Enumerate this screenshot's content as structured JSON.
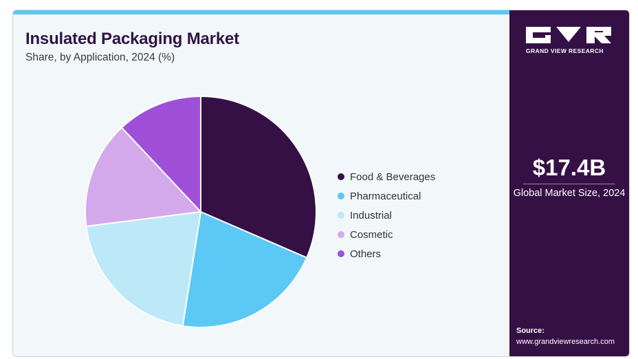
{
  "title": "Insulated Packaging Market",
  "subtitle": "Share, by Application, 2024 (%)",
  "chart_data": {
    "type": "pie",
    "categories": [
      "Food & Beverages",
      "Pharmaceutical",
      "Industrial",
      "Cosmetic",
      "Others"
    ],
    "values": [
      31.5,
      21.0,
      20.5,
      15.0,
      12.0
    ],
    "colors": [
      "#351045",
      "#5bc8f5",
      "#bde8f8",
      "#d4a9ec",
      "#a050d8"
    ],
    "title": "Insulated Packaging Market",
    "subtitle": "Share, by Application, 2024 (%)",
    "legend": "right",
    "start": "top",
    "direction": "clockwise"
  },
  "brand": {
    "name": "GRAND VIEW RESEARCH",
    "logo_icon": "gvr-logo-icon"
  },
  "market": {
    "value": "$17.4B",
    "label": "Global Market Size, 2024"
  },
  "source": {
    "label": "Source:",
    "url": "www.grandviewresearch.com"
  },
  "colors": {
    "panel": "#351045",
    "accent": "#5bc8f5",
    "background": "#f2f7fa"
  }
}
